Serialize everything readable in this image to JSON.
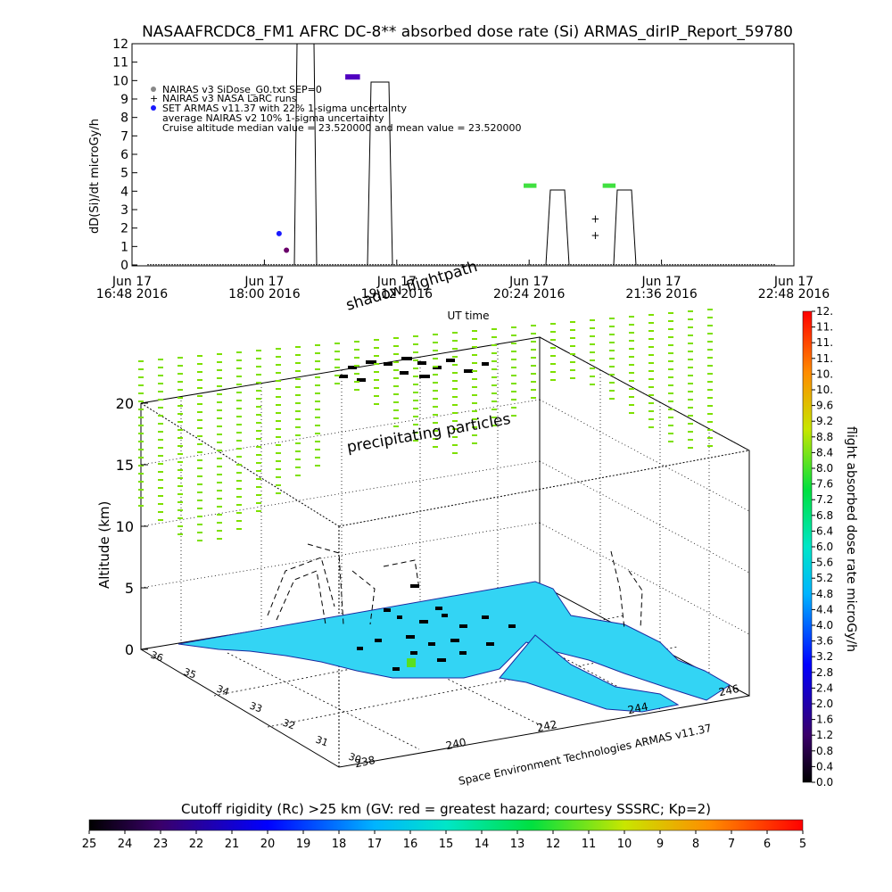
{
  "title": "NASAAFRCDC8_FM1 AFRC DC-8** absorbed dose rate (Si) ARMAS_dirIP_Report_59780",
  "top_chart": {
    "ylabel": "dD(Si)/dt microGy/h",
    "xlabel": "UT time",
    "legend": [
      "NAIRAS v3 SiDose_G0.txt SEP=0",
      "NAIRAS v3 NASA LaRC runs",
      "SET ARMAS v11.37 with 22% 1-sigma uncertainty",
      "average NAIRAS v2 10% 1-sigma uncertainty",
      "Cruise altitude median value = 23.520000 and mean value = 23.520000"
    ],
    "x_ticks": [
      {
        "top": "Jun 17",
        "bottom": "16:48 2016"
      },
      {
        "top": "Jun 17",
        "bottom": "18:00 2016"
      },
      {
        "top": "Jun 17",
        "bottom": "19:12 2016"
      },
      {
        "top": "Jun 17",
        "bottom": "20:24 2016"
      },
      {
        "top": "Jun 17",
        "bottom": "21:36 2016"
      },
      {
        "top": "Jun 17",
        "bottom": "22:48 2016"
      }
    ],
    "y_ticks": [
      "0",
      "1",
      "2",
      "3",
      "4",
      "5",
      "6",
      "7",
      "8",
      "9",
      "10",
      "11",
      "12"
    ]
  },
  "chart_data": {
    "type": "line",
    "x_unit": "UT time, Jun 17 2016",
    "xlim": [
      "16:48",
      "22:48"
    ],
    "ylim": [
      0,
      12
    ],
    "series": [
      {
        "name": "SET ARMAS v11.37 with 22% 1-sigma uncertainty",
        "color": "#1a1aff",
        "points": [
          {
            "x": "18:08",
            "y": 1.7
          },
          {
            "x": "18:12",
            "y": 0.8
          },
          {
            "x": "18:44",
            "y": 10.2
          },
          {
            "x": "18:52",
            "y": 10.2
          },
          {
            "x": "20:21",
            "y": 4.3
          },
          {
            "x": "20:28",
            "y": 4.3
          },
          {
            "x": "21:04",
            "y": 4.3
          },
          {
            "x": "21:11",
            "y": 4.3
          }
        ]
      },
      {
        "name": "NAIRAS v3 NASA LaRC runs",
        "points": [
          {
            "x": "21:00",
            "y": 2.5
          },
          {
            "x": "21:00",
            "y": 1.6
          }
        ]
      }
    ]
  },
  "scene": {
    "label_shadow": "shadow flightpath",
    "label_particles": "precipitating particles",
    "zlabel": "Altitude (km)",
    "z_ticks": [
      "0",
      "5",
      "10",
      "15",
      "20"
    ],
    "lat_ticks": [
      "30",
      "31",
      "32",
      "33",
      "34",
      "35",
      "36"
    ],
    "lon_ticks": [
      "238",
      "240",
      "242",
      "244",
      "246"
    ],
    "credit": "Space Environment Technologies ARMAS v11.37"
  },
  "right_colorbar": {
    "label": "flight absorbed dose rate microGy/h",
    "ticks": [
      "0.0",
      "0.4",
      "0.8",
      "1.2",
      "1.6",
      "2.0",
      "2.4",
      "2.8",
      "3.2",
      "3.6",
      "4.0",
      "4.4",
      "4.8",
      "5.2",
      "5.6",
      "6.0",
      "6.4",
      "6.8",
      "7.2",
      "7.6",
      "8.0",
      "8.4",
      "8.8",
      "9.2",
      "9.6",
      "10.",
      "10.",
      "11.",
      "11.",
      "11.",
      "12."
    ]
  },
  "bottom_colorbar": {
    "title": "Cutoff rigidity (Rc) >25 km (GV: red = greatest hazard; courtesy SSSRC; Kp=2)",
    "ticks": [
      "25",
      "24",
      "23",
      "22",
      "21",
      "20",
      "19",
      "18",
      "17",
      "16",
      "15",
      "14",
      "13",
      "12",
      "11",
      "10",
      "9",
      "8",
      "7",
      "6",
      "5"
    ]
  }
}
